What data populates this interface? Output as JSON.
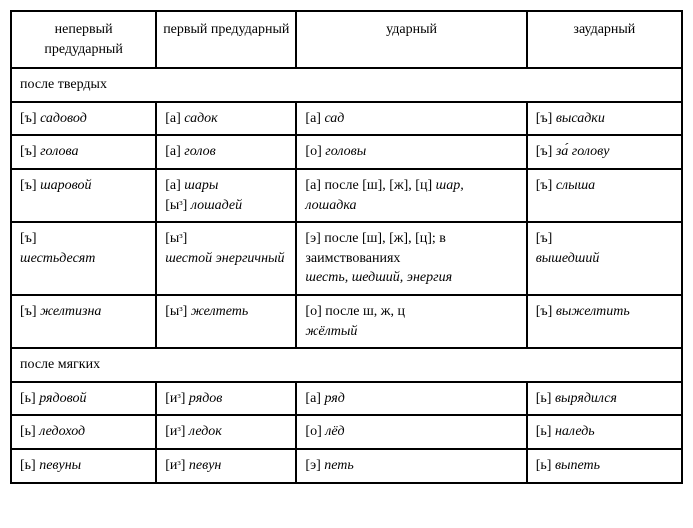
{
  "headers": {
    "c1": "непервый предударный",
    "c2": "первый предударный",
    "c3": "ударный",
    "c4": "заударный"
  },
  "section1": "после твердых",
  "section2": "после мягких",
  "rows1": {
    "r1": {
      "c1s": "[ъ] ",
      "c1e": "садовод",
      "c2s": "[а] ",
      "c2e": "садок",
      "c3s": "[а] ",
      "c3e": "сад",
      "c4s": "[ъ] ",
      "c4e": "высадки"
    },
    "r2": {
      "c1s": "[ъ] ",
      "c1e": "голова",
      "c2s": "[а] ",
      "c2e": "голов",
      "c3s": "[о] ",
      "c3e": "головы",
      "c4s": "[ъ] ",
      "c4e": "за́ голову"
    },
    "r3": {
      "c1s": "[ъ] ",
      "c1e": "шаровой",
      "c2s1": "[а] ",
      "c2e1": "шары",
      "c2s2": "[ыᵌ] ",
      "c2e2": "лошадей",
      "c3s": "[а] после [ш], [ж], [ц] ",
      "c3e": "шар, лошадка",
      "c4s": "[ъ] ",
      "c4e": "слыша"
    },
    "r4": {
      "c1s": "[ъ]",
      "c1e": "шестьдесят",
      "c2s": "[ыᵌ]",
      "c2e": "шестой энергичный",
      "c3s": "[э] после [ш], [ж], [ц]; в заимствованиях",
      "c3e": "шесть, шедший, энергия",
      "c4s": "[ъ]",
      "c4e": "вышедший"
    },
    "r5": {
      "c1s": "[ъ] ",
      "c1e": "желтизна",
      "c2s": "[ыᵌ] ",
      "c2e": "желтеть",
      "c3s": "[о] после ш, ж, ц",
      "c3e": "жёлтый",
      "c4s": "[ъ] ",
      "c4e": "выжелтить"
    }
  },
  "rows2": {
    "r1": {
      "c1s": "[ь] ",
      "c1e": "рядовой",
      "c2s": "[иᵌ] ",
      "c2e": "рядов",
      "c3s": "[а] ",
      "c3e": "ряд",
      "c4s": "[ь] ",
      "c4e": "вырядился"
    },
    "r2": {
      "c1s": "[ь] ",
      "c1e": "ледоход",
      "c2s": "[иᵌ] ",
      "c2e": "ледок",
      "c3s": "[о] ",
      "c3e": "лёд",
      "c4s": "[ь] ",
      "c4e": "наледь"
    },
    "r3": {
      "c1s": "[ь] ",
      "c1e": "певуны",
      "c2s": "[иᵌ] ",
      "c2e": "певун",
      "c3s": "[э] ",
      "c3e": "петь",
      "c4s": "[ь] ",
      "c4e": "выпеть"
    }
  }
}
